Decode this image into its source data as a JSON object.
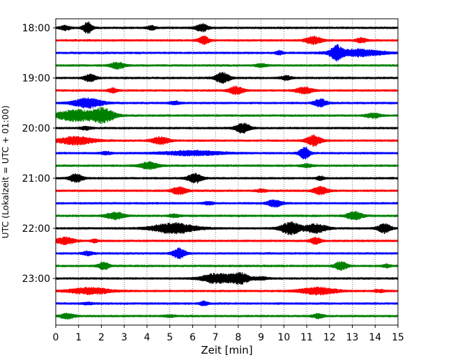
{
  "chart_data": {
    "type": "line",
    "subtype": "helicorder",
    "title": "",
    "xlabel": "Zeit  [min]",
    "ylabel": "UTC (Lokalzeit = UTC + 01:00)",
    "xlim": [
      0,
      15
    ],
    "x_ticks": [
      "0",
      "1",
      "2",
      "3",
      "4",
      "5",
      "6",
      "7",
      "8",
      "9",
      "10",
      "11",
      "12",
      "13",
      "14",
      "15"
    ],
    "y_tick_labels": [
      "18:00",
      "19:00",
      "20:00",
      "21:00",
      "22:00",
      "23:00"
    ],
    "grid": "vertical dotted lines at each minute",
    "trace_interval_minutes": 15,
    "trace_colors": [
      "#000000",
      "#ff0000",
      "#0000ff",
      "#008000"
    ],
    "traces": [
      {
        "start": "18:00",
        "bursts": [
          [
            1.4,
            0.9,
            0.25
          ],
          [
            6.4,
            0.6,
            0.35
          ],
          [
            0.4,
            0.35,
            0.3
          ],
          [
            4.2,
            0.3,
            0.25
          ]
        ]
      },
      {
        "start": "18:15",
        "bursts": [
          [
            6.5,
            0.6,
            0.3
          ],
          [
            11.3,
            0.6,
            0.45
          ],
          [
            13.4,
            0.35,
            0.3
          ]
        ]
      },
      {
        "start": "18:30",
        "bursts": [
          [
            12.3,
            1.0,
            0.3
          ],
          [
            13.2,
            0.55,
            1.4
          ],
          [
            9.8,
            0.3,
            0.2
          ]
        ]
      },
      {
        "start": "18:45",
        "bursts": [
          [
            2.7,
            0.5,
            0.4
          ],
          [
            9.0,
            0.25,
            0.3
          ]
        ]
      },
      {
        "start": "19:00",
        "bursts": [
          [
            1.5,
            0.55,
            0.35
          ],
          [
            7.3,
            0.85,
            0.4
          ],
          [
            10.1,
            0.3,
            0.3
          ]
        ]
      },
      {
        "start": "19:15",
        "bursts": [
          [
            2.5,
            0.35,
            0.25
          ],
          [
            7.9,
            0.6,
            0.4
          ],
          [
            10.9,
            0.5,
            0.45
          ]
        ]
      },
      {
        "start": "19:30",
        "bursts": [
          [
            1.4,
            0.75,
            0.8
          ],
          [
            11.6,
            0.6,
            0.35
          ],
          [
            5.2,
            0.25,
            0.3
          ]
        ]
      },
      {
        "start": "19:45",
        "bursts": [
          [
            0.9,
            0.85,
            1.2
          ],
          [
            2.1,
            1.0,
            0.6
          ],
          [
            13.9,
            0.35,
            0.4
          ]
        ]
      },
      {
        "start": "20:00",
        "bursts": [
          [
            8.2,
            0.75,
            0.4
          ],
          [
            1.3,
            0.25,
            0.3
          ]
        ]
      },
      {
        "start": "20:15",
        "bursts": [
          [
            0.9,
            0.6,
            1.0
          ],
          [
            4.6,
            0.55,
            0.5
          ],
          [
            11.3,
            0.85,
            0.4
          ]
        ]
      },
      {
        "start": "20:30",
        "bursts": [
          [
            6.0,
            0.35,
            1.6
          ],
          [
            10.9,
            0.9,
            0.3
          ],
          [
            2.2,
            0.2,
            0.3
          ]
        ]
      },
      {
        "start": "20:45",
        "bursts": [
          [
            4.1,
            0.55,
            0.5
          ],
          [
            11.0,
            0.25,
            0.3
          ]
        ]
      },
      {
        "start": "21:00",
        "bursts": [
          [
            0.9,
            0.7,
            0.35
          ],
          [
            6.1,
            0.75,
            0.4
          ],
          [
            11.6,
            0.3,
            0.2
          ]
        ]
      },
      {
        "start": "21:15",
        "bursts": [
          [
            5.4,
            0.6,
            0.4
          ],
          [
            11.6,
            0.6,
            0.4
          ],
          [
            9.0,
            0.2,
            0.3
          ]
        ]
      },
      {
        "start": "21:30",
        "bursts": [
          [
            9.6,
            0.55,
            0.4
          ],
          [
            6.7,
            0.2,
            0.3
          ]
        ]
      },
      {
        "start": "21:45",
        "bursts": [
          [
            2.6,
            0.55,
            0.5
          ],
          [
            13.1,
            0.6,
            0.45
          ],
          [
            5.2,
            0.2,
            0.3
          ]
        ]
      },
      {
        "start": "22:00",
        "bursts": [
          [
            5.2,
            0.8,
            1.2
          ],
          [
            10.3,
            0.95,
            0.55
          ],
          [
            11.4,
            0.7,
            0.6
          ],
          [
            14.4,
            0.75,
            0.35
          ]
        ]
      },
      {
        "start": "22:15",
        "bursts": [
          [
            0.4,
            0.55,
            0.5
          ],
          [
            11.4,
            0.5,
            0.3
          ],
          [
            1.7,
            0.25,
            0.2
          ]
        ]
      },
      {
        "start": "22:30",
        "bursts": [
          [
            5.4,
            0.8,
            0.35
          ],
          [
            1.4,
            0.3,
            0.3
          ]
        ]
      },
      {
        "start": "22:45",
        "bursts": [
          [
            2.1,
            0.6,
            0.3
          ],
          [
            12.5,
            0.65,
            0.35
          ],
          [
            14.5,
            0.25,
            0.2
          ]
        ]
      },
      {
        "start": "23:00",
        "bursts": [
          [
            7.1,
            0.75,
            0.9
          ],
          [
            8.1,
            0.8,
            0.5
          ],
          [
            9.0,
            0.2,
            0.4
          ]
        ]
      },
      {
        "start": "23:15",
        "bursts": [
          [
            1.5,
            0.5,
            1.1
          ],
          [
            11.5,
            0.55,
            1.0
          ],
          [
            14.2,
            0.2,
            0.3
          ]
        ]
      },
      {
        "start": "23:30",
        "bursts": [
          [
            6.5,
            0.3,
            0.25
          ],
          [
            1.4,
            0.15,
            0.3
          ]
        ]
      },
      {
        "start": "23:45",
        "bursts": [
          [
            0.5,
            0.4,
            0.4
          ],
          [
            11.5,
            0.35,
            0.3
          ],
          [
            5.0,
            0.15,
            0.3
          ]
        ]
      }
    ]
  }
}
